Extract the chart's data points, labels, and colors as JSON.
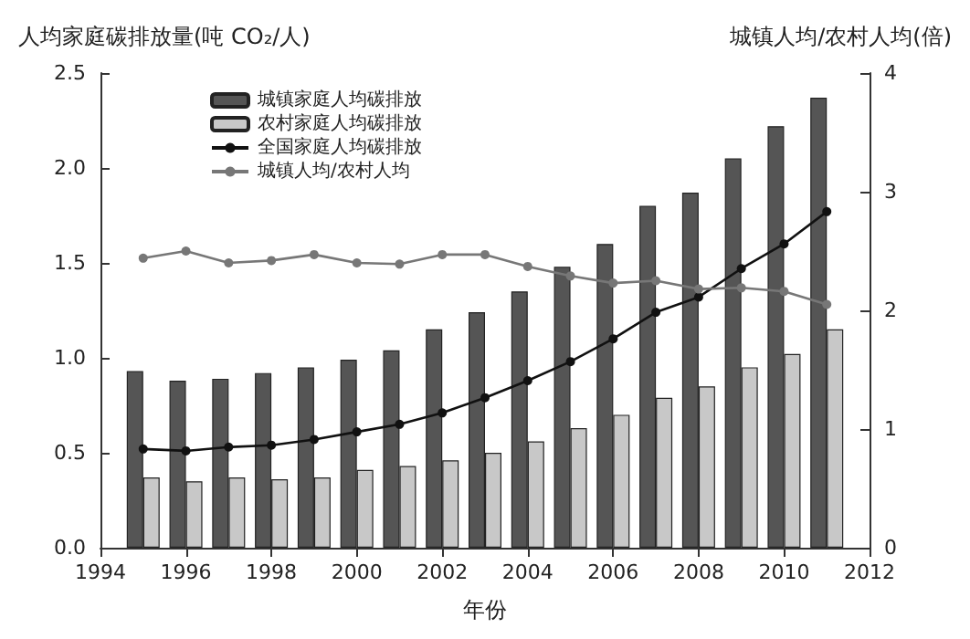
{
  "chart_data": {
    "type": "bar",
    "xlabel": "年份",
    "ylabel": "人均家庭碳排放量(吨 CO₂/人)",
    "y2label": "城镇人均/农村人均(倍)",
    "x": [
      1995,
      1996,
      1997,
      1998,
      1999,
      2000,
      2001,
      2002,
      2003,
      2004,
      2005,
      2006,
      2007,
      2008,
      2009,
      2010,
      2011
    ],
    "series": [
      {
        "name": "城镇家庭人均碳排放",
        "color": "#555555",
        "values": [
          0.93,
          0.88,
          0.89,
          0.92,
          0.95,
          0.99,
          1.04,
          1.15,
          1.24,
          1.35,
          1.48,
          1.6,
          1.8,
          1.87,
          2.05,
          2.22,
          2.37
        ]
      },
      {
        "name": "农村家庭人均碳排放",
        "color": "#c8c8c8",
        "values": [
          0.37,
          0.35,
          0.37,
          0.36,
          0.37,
          0.41,
          0.43,
          0.46,
          0.5,
          0.56,
          0.63,
          0.7,
          0.79,
          0.85,
          0.95,
          1.02,
          1.15
        ]
      },
      {
        "name": "全国家庭人均碳排放",
        "type": "line",
        "color": "#111111",
        "marker": "circle",
        "values": [
          0.52,
          0.51,
          0.53,
          0.54,
          0.57,
          0.61,
          0.65,
          0.71,
          0.79,
          0.88,
          0.98,
          1.1,
          1.24,
          1.32,
          1.47,
          1.6,
          1.77
        ]
      },
      {
        "name": "城镇人均/农村人均",
        "type": "line",
        "axis": "y2",
        "color": "#777777",
        "marker": "circle",
        "values": [
          2.44,
          2.5,
          2.4,
          2.42,
          2.47,
          2.4,
          2.39,
          2.47,
          2.47,
          2.37,
          2.29,
          2.23,
          2.25,
          2.18,
          2.19,
          2.16,
          2.05
        ]
      }
    ],
    "xlim": [
      1994,
      2012
    ],
    "xticks": [
      1994,
      1996,
      1998,
      2000,
      2002,
      2004,
      2006,
      2008,
      2010,
      2012
    ],
    "ylim": [
      0,
      2.5
    ],
    "yticks": [
      {
        "value": 0,
        "label": "0.0"
      },
      {
        "value": 0.5,
        "label": "0.5"
      },
      {
        "value": 1,
        "label": "1.0"
      },
      {
        "value": 1.5,
        "label": "1.5"
      },
      {
        "value": 2,
        "label": "2.0"
      },
      {
        "value": 2.5,
        "label": "2.5"
      }
    ],
    "y2lim": [
      0,
      4
    ],
    "y2ticks": [
      0,
      1,
      2,
      3,
      4
    ],
    "grid": false,
    "legend": "top left"
  }
}
